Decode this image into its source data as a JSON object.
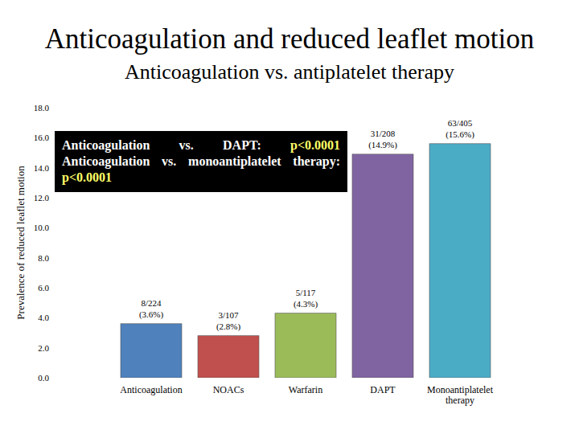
{
  "chart_data": {
    "type": "bar",
    "title": "Anticoagulation and reduced leaflet motion",
    "subtitle": "Anticoagulation vs. antiplatelet therapy",
    "y_label": "Prevalence of reduced leaflet motion",
    "categories": [
      "Anticoagulation",
      "NOACs",
      "Warfarin",
      "DAPT",
      "Monoantiplatelet therapy"
    ],
    "values": [
      3.6,
      2.8,
      4.3,
      14.9,
      15.6
    ],
    "value_labels": [
      "8/224 (3.6%)",
      "3/107 (2.8%)",
      "5/117 (4.3%)",
      "31/208 (14.9%)",
      "63/405 (15.6%)"
    ],
    "colors": [
      "#4f81bd",
      "#c0504d",
      "#9bbb59",
      "#8064a2",
      "#4bacc6"
    ],
    "data_labels": true,
    "grid": false,
    "ylim": [
      0,
      18
    ],
    "yticks": [
      {
        "value": 0,
        "label": "0.0"
      },
      {
        "value": 2,
        "label": "2.0"
      },
      {
        "value": 4,
        "label": "4.0"
      },
      {
        "value": 6,
        "label": "6.0"
      },
      {
        "value": 8,
        "label": "8.0"
      },
      {
        "value": 10,
        "label": "10.0"
      },
      {
        "value": 12,
        "label": "12.0"
      },
      {
        "value": 14,
        "label": "14.0"
      },
      {
        "value": 16,
        "label": "16.0"
      },
      {
        "value": 18,
        "label": "18.0"
      }
    ],
    "annotations": [
      {
        "text": "Anticoagulation vs. DAPT:",
        "p": "p<0.0001"
      },
      {
        "text": "Anticoagulation vs. monoantiplatelet therapy:",
        "p": "p<0.0001"
      }
    ]
  }
}
